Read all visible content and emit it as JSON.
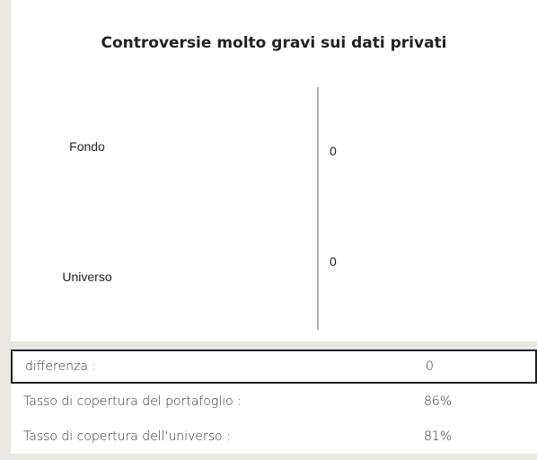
{
  "chart_data": {
    "type": "bar",
    "orientation": "horizontal",
    "title": "Controversie molto gravi sui dati privati",
    "categories": [
      "Fondo",
      "Universo"
    ],
    "values": [
      0,
      0
    ],
    "color": "#4472c4",
    "xlim": [
      0,
      1
    ]
  },
  "table": {
    "rows": [
      [
        "differenza :",
        "0"
      ],
      [
        "Tasso di copertura del portafoglio :",
        "86%"
      ],
      [
        "Tasso di copertura dell'universo :",
        "81%"
      ]
    ]
  }
}
